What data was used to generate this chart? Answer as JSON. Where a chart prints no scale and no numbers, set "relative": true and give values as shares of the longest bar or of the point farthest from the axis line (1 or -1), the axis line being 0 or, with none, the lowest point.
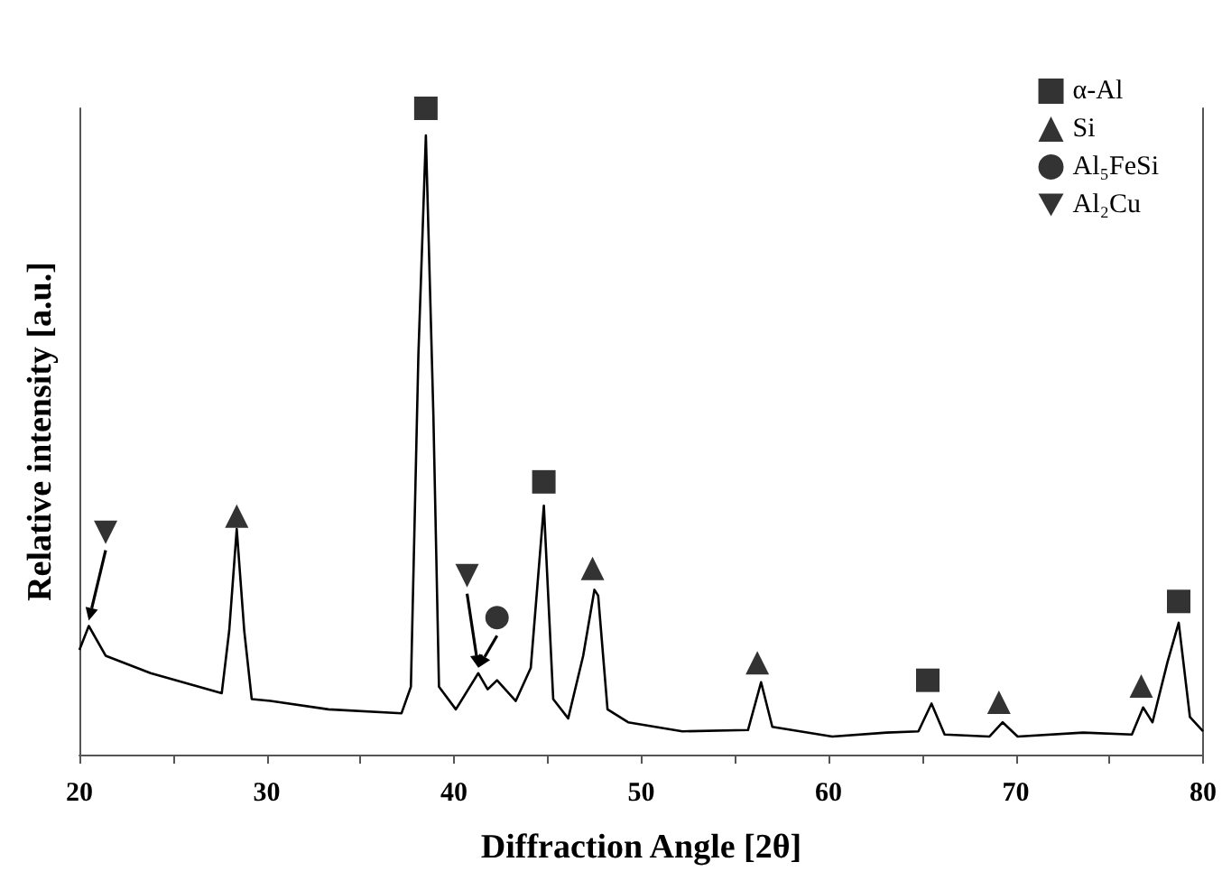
{
  "chart_data": {
    "type": "line",
    "xlabel": "Diffraction Angle [2θ]",
    "ylabel": "Relative intensity [a.u.]",
    "relative": true,
    "xlim": [
      20,
      80
    ],
    "xticks": [
      20,
      {
        "value": 25,
        "label": null
      },
      30,
      {
        "value": 35,
        "label": null
      },
      40,
      {
        "value": 45,
        "label": null
      },
      50,
      {
        "value": 55,
        "label": null
      },
      60,
      {
        "value": 65,
        "label": null
      },
      70,
      {
        "value": 75,
        "label": null
      },
      80
    ],
    "grid": false,
    "legend": "top right",
    "series": [
      {
        "color": "#000000",
        "marker": "none",
        "x": [
          20,
          20.5,
          21.4,
          23.8,
          27.6,
          28.0,
          28.4,
          28.8,
          29.2,
          30.2,
          33.3,
          37.2,
          37.7,
          38.1,
          38.5,
          38.9,
          39.2,
          40.1,
          41.3,
          41.8,
          42.3,
          43.3,
          44.1,
          44.8,
          45.3,
          46.1,
          46.9,
          47.5,
          47.7,
          48.2,
          49.3,
          52.2,
          55.7,
          56.4,
          57.0,
          60.2,
          63.1,
          64.8,
          65.5,
          66.2,
          68.6,
          69.3,
          70.1,
          73.6,
          76.2,
          76.8,
          77.3,
          78.1,
          78.7,
          79.3,
          80
        ],
        "values": [
          0.162,
          0.199,
          0.153,
          0.126,
          0.095,
          0.192,
          0.349,
          0.192,
          0.086,
          0.083,
          0.07,
          0.064,
          0.105,
          0.618,
          0.958,
          0.527,
          0.105,
          0.07,
          0.126,
          0.101,
          0.115,
          0.083,
          0.134,
          0.385,
          0.086,
          0.056,
          0.153,
          0.255,
          0.246,
          0.07,
          0.05,
          0.036,
          0.038,
          0.112,
          0.043,
          0.028,
          0.034,
          0.036,
          0.079,
          0.031,
          0.028,
          0.05,
          0.028,
          0.034,
          0.031,
          0.073,
          0.05,
          0.143,
          0.204,
          0.058,
          0.036
        ]
      },
      {
        "type": "scatter",
        "name": "α-Al",
        "color": "#000000",
        "marker": "square",
        "x": [
          38.5,
          44.8,
          65.3,
          78.7
        ],
        "values": [
          1.0,
          0.422,
          0.115,
          0.237
        ]
      },
      {
        "type": "scatter",
        "name": "Si",
        "color": "#000000",
        "marker": "triangle",
        "x": [
          28.4,
          47.4,
          56.2,
          69.1,
          76.7
        ],
        "values": [
          0.369,
          0.288,
          0.142,
          0.081,
          0.106
        ]
      },
      {
        "type": "scatter",
        "name": "Al₅FeSi",
        "color": "#000000",
        "marker": "circle",
        "x": [
          42.3
        ],
        "values": [
          0.212
        ]
      },
      {
        "type": "scatter",
        "name": "Al₂Cu",
        "color": "#000000",
        "marker": "triangle_down",
        "x": [
          21.4,
          40.7
        ],
        "values": [
          0.344,
          0.277
        ]
      }
    ]
  }
}
